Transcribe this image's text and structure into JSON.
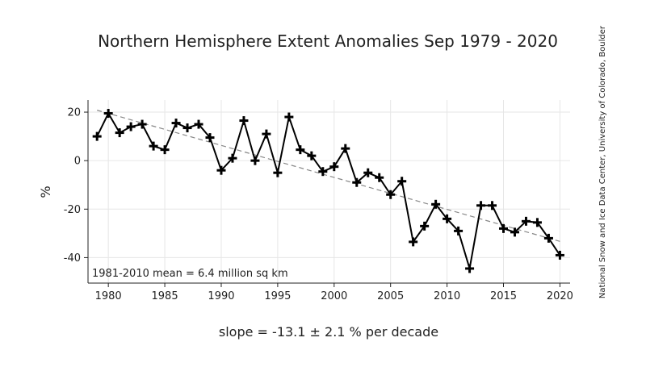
{
  "chart_data": {
    "type": "line",
    "title": "Northern Hemisphere Extent Anomalies Sep 1979 - 2020",
    "ylabel": "%",
    "xlabel": "slope = -13.1 ± 2.1 % per decade",
    "annotation": "1981-2010 mean = 6.4 million sq km",
    "credit": "National Snow and Ice Data Center, University of Colorado, Boulder",
    "xlim": [
      1978.2,
      2020.9
    ],
    "ylim": [
      -50.5,
      25
    ],
    "xticks": [
      1980,
      1985,
      1990,
      1995,
      2000,
      2005,
      2010,
      2015,
      2020
    ],
    "yticks": [
      20,
      0,
      -20,
      -40
    ],
    "grid": true,
    "marker": "plus",
    "series": [
      {
        "x": [
          1979,
          1980,
          1981,
          1982,
          1983,
          1984,
          1985,
          1986,
          1987,
          1988,
          1989,
          1990,
          1991,
          1992,
          1993,
          1994,
          1995,
          1996,
          1997,
          1998,
          1999,
          2000,
          2001,
          2002,
          2003,
          2004,
          2005,
          2006,
          2007,
          2008,
          2009,
          2010,
          2011,
          2012,
          2013,
          2014,
          2015,
          2016,
          2017,
          2018,
          2019,
          2020
        ],
        "values": [
          10,
          19.5,
          11.5,
          14,
          15,
          6,
          4.5,
          15.5,
          13.5,
          15,
          9.5,
          -4,
          1,
          16.5,
          0,
          11,
          -5,
          18,
          4.5,
          2,
          -4.5,
          -2.5,
          5,
          -9,
          -5,
          -7,
          -14,
          -8.5,
          -33.5,
          -27,
          -18,
          -24,
          -29,
          -44.5,
          -18.5,
          -18.5,
          -28,
          -29.5,
          -25,
          -25.5,
          -32,
          -39
        ],
        "color": "#000000"
      }
    ],
    "trendline": {
      "style": "dashed",
      "color": "#888888",
      "x": [
        1979,
        2020
      ],
      "values": [
        20.8,
        -33.3
      ]
    }
  }
}
